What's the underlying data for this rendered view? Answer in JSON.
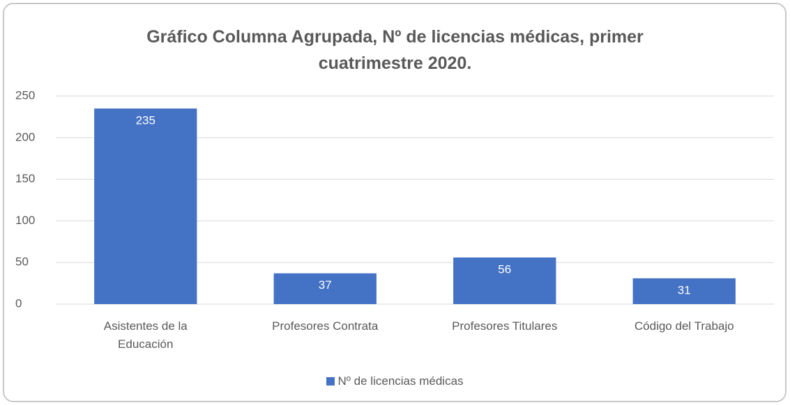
{
  "chart_data": {
    "type": "bar",
    "title": "Gráfico Columna Agrupada, Nº de licencias médicas, primer cuatrimestre 2020.",
    "categories": [
      "Asistentes de la Educación",
      "Profesores Contrata",
      "Profesores Titulares",
      "Código del Trabajo"
    ],
    "series": [
      {
        "name": "Nº de licencias médicas",
        "color": "#4472c4",
        "values": [
          235,
          37,
          56,
          31
        ]
      }
    ],
    "ylim": [
      0,
      250
    ],
    "yticks": [
      0,
      50,
      100,
      150,
      200,
      250
    ],
    "grid": true,
    "legend": "bottom"
  }
}
